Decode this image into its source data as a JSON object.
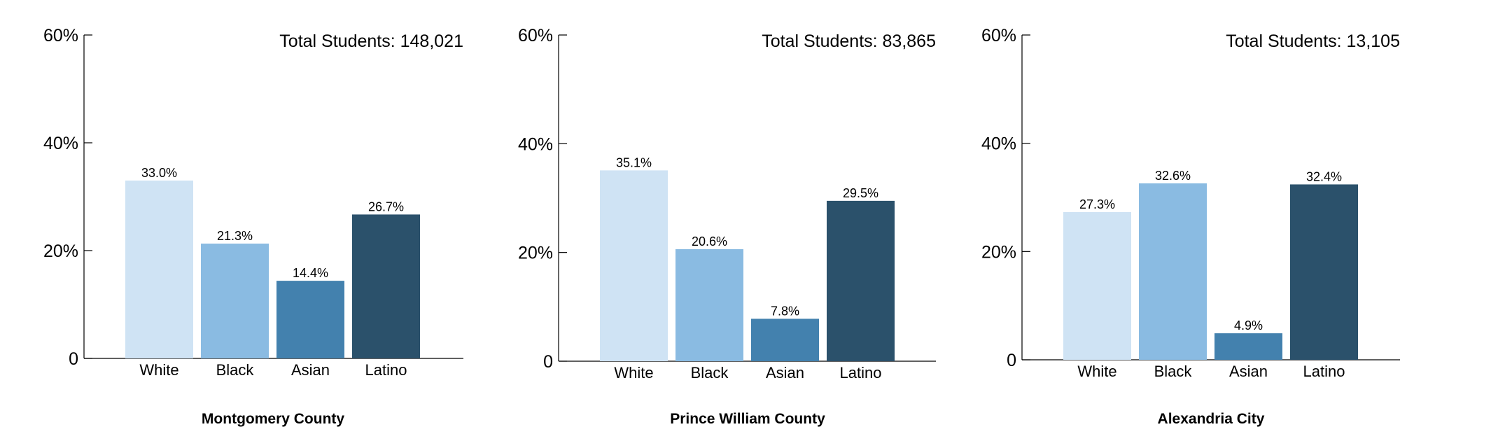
{
  "chart_data": [
    {
      "type": "bar",
      "title": "Montgomery County",
      "annotation": "Total Students: 148,021",
      "categories": [
        "White",
        "Black",
        "Asian",
        "Latino"
      ],
      "values": [
        33.0,
        21.3,
        14.4,
        26.7
      ],
      "value_labels": [
        "33.0%",
        "21.3%",
        "14.4%",
        "26.7%"
      ],
      "colors": [
        "#cfe3f4",
        "#8abbe2",
        "#4381ae",
        "#2b516b"
      ],
      "ylim": [
        0,
        60
      ],
      "yticks": [
        0,
        20,
        40,
        60
      ],
      "ytick_labels": [
        "0",
        "20%",
        "40%",
        "60%"
      ],
      "xlabel": "",
      "ylabel": ""
    },
    {
      "type": "bar",
      "title": "Prince William County",
      "annotation": "Total Students: 83,865",
      "categories": [
        "White",
        "Black",
        "Asian",
        "Latino"
      ],
      "values": [
        35.1,
        20.6,
        7.8,
        29.5
      ],
      "value_labels": [
        "35.1%",
        "20.6%",
        "7.8%",
        "29.5%"
      ],
      "colors": [
        "#cfe3f4",
        "#8abbe2",
        "#4381ae",
        "#2b516b"
      ],
      "ylim": [
        0,
        60
      ],
      "yticks": [
        0,
        20,
        40,
        60
      ],
      "ytick_labels": [
        "0",
        "20%",
        "40%",
        "60%"
      ],
      "xlabel": "",
      "ylabel": ""
    },
    {
      "type": "bar",
      "title": "Alexandria City",
      "annotation": "Total Students: 13,105",
      "categories": [
        "White",
        "Black",
        "Asian",
        "Latino"
      ],
      "values": [
        27.3,
        32.6,
        4.9,
        32.4
      ],
      "value_labels": [
        "27.3%",
        "32.6%",
        "4.9%",
        "32.4%"
      ],
      "colors": [
        "#cfe3f4",
        "#8abbe2",
        "#4381ae",
        "#2b516b"
      ],
      "ylim": [
        0,
        60
      ],
      "yticks": [
        0,
        20,
        40,
        60
      ],
      "ytick_labels": [
        "0",
        "20%",
        "40%",
        "60%"
      ],
      "xlabel": "",
      "ylabel": ""
    }
  ]
}
